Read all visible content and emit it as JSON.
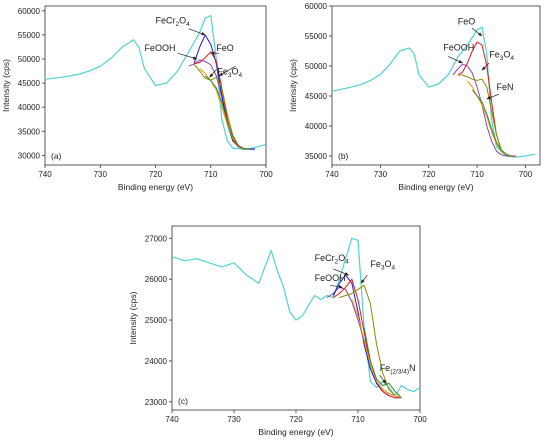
{
  "chart_data": [
    {
      "type": "line",
      "panel_label": "(a)",
      "xlabel": "Binding energy (eV)",
      "ylabel": "Intensity (cps)",
      "xlim": [
        740,
        700
      ],
      "ylim": [
        28000,
        61000
      ],
      "x_ticks": [
        740,
        730,
        720,
        710,
        700
      ],
      "y_ticks": [
        30000,
        35000,
        40000,
        45000,
        50000,
        55000,
        60000
      ],
      "grid": false,
      "series": [
        {
          "color": "#4fd3d3",
          "x": [
            740,
            737,
            734,
            732,
            730,
            728,
            726,
            724,
            723,
            722,
            720,
            718,
            716,
            714,
            712,
            711,
            710,
            709,
            708,
            707,
            706,
            704,
            702,
            700
          ],
          "y": [
            45800,
            46200,
            46800,
            47500,
            48500,
            50200,
            52500,
            54000,
            52500,
            48000,
            44500,
            45000,
            47500,
            51500,
            55500,
            58500,
            59000,
            50000,
            37500,
            33000,
            31500,
            31300,
            31600,
            32300
          ]
        },
        {
          "color": "#8e44ad",
          "x": [
            714,
            713,
            712,
            711,
            710,
            709,
            708,
            707,
            706,
            705,
            704,
            703,
            702
          ],
          "y": [
            48500,
            49000,
            49800,
            49500,
            48800,
            46500,
            42000,
            36500,
            33000,
            31800,
            31400,
            31300,
            31300
          ]
        },
        {
          "color": "#1a1acc",
          "x": [
            713,
            712,
            711,
            710,
            709,
            708,
            707,
            706,
            705,
            704,
            703,
            702
          ],
          "y": [
            49200,
            52500,
            55000,
            53000,
            49000,
            42500,
            36500,
            33000,
            31800,
            31300,
            31300,
            31300
          ]
        },
        {
          "color": "#e8151b",
          "x": [
            713,
            712,
            711,
            710,
            709,
            708,
            707,
            706,
            705,
            704,
            703
          ],
          "y": [
            49000,
            49300,
            50300,
            51500,
            49500,
            44000,
            37500,
            33200,
            31800,
            31300,
            31300
          ]
        },
        {
          "color": "#8b8b00",
          "x": [
            713,
            712,
            711,
            710,
            709,
            708,
            707,
            706,
            705,
            704,
            703
          ],
          "y": [
            48900,
            47500,
            46000,
            45600,
            46200,
            44000,
            38500,
            34200,
            32000,
            31300,
            31300
          ]
        },
        {
          "color": "#f39c12",
          "x": [
            712,
            711,
            710,
            709,
            708,
            707,
            706,
            705,
            704,
            703
          ],
          "y": [
            48000,
            47000,
            45500,
            43500,
            40000,
            36500,
            33500,
            32000,
            31400,
            31300
          ]
        },
        {
          "color": "#2e8b2e",
          "x": [
            711,
            710,
            709,
            708,
            707,
            706,
            705,
            704,
            703
          ],
          "y": [
            46500,
            45500,
            44000,
            41000,
            37000,
            33800,
            32000,
            31400,
            31300
          ]
        }
      ],
      "annotations": [
        {
          "parts": [
            {
              "t": "FeCr"
            },
            {
              "t": "2",
              "sub": true
            },
            {
              "t": "O"
            },
            {
              "t": "4",
              "sub": true
            }
          ],
          "text_xy": [
            720,
            57400
          ],
          "arrow_from": [
            714,
            56300
          ],
          "arrow_to": [
            711,
            55000
          ]
        },
        {
          "parts": [
            {
              "t": "FeOOH"
            }
          ],
          "text_xy": [
            722,
            51700
          ],
          "arrow_from": [
            716,
            51200
          ],
          "arrow_to": [
            712.5,
            50000
          ]
        },
        {
          "parts": [
            {
              "t": "FeO"
            }
          ],
          "text_xy": [
            709,
            51700
          ],
          "arrow_from": [
            708.5,
            51200
          ],
          "arrow_to": [
            710,
            51200
          ]
        },
        {
          "parts": [
            {
              "t": "Fe"
            },
            {
              "t": "3",
              "sub": true
            },
            {
              "t": "O"
            },
            {
              "t": "4",
              "sub": true
            }
          ],
          "text_xy": [
            708.8,
            46800
          ],
          "arrow_from": [
            709,
            47800
          ],
          "arrow_to": [
            710.2,
            46200
          ]
        },
        {
          "parts": [],
          "text_xy": [
            706,
            48000
          ],
          "arrow_from": [
            705.5,
            48500
          ],
          "arrow_to": [
            708.5,
            46500
          ]
        }
      ]
    },
    {
      "type": "line",
      "panel_label": "(b)",
      "xlabel": "Binding energy (eV)",
      "ylabel": "Intensity (cps)",
      "xlim": [
        740,
        697
      ],
      "ylim": [
        33500,
        60000
      ],
      "x_ticks": [
        740,
        730,
        720,
        710,
        700
      ],
      "y_ticks": [
        35000,
        40000,
        45000,
        50000,
        55000,
        60000
      ],
      "grid": false,
      "series": [
        {
          "color": "#4fd3d3",
          "x": [
            740,
            737,
            734,
            732,
            730,
            728,
            726,
            724,
            723,
            722,
            720,
            718,
            716,
            714,
            712,
            710,
            709,
            708,
            707,
            706,
            704,
            702,
            700,
            698
          ],
          "y": [
            45800,
            46300,
            46900,
            47600,
            48600,
            50300,
            52500,
            53000,
            52000,
            48500,
            46500,
            47000,
            48500,
            51500,
            53500,
            56000,
            56500,
            52000,
            41000,
            36500,
            35000,
            34800,
            35000,
            35300
          ]
        },
        {
          "color": "#8e44ad",
          "x": [
            715,
            714,
            713,
            712,
            711,
            710,
            709,
            708,
            707,
            706,
            705,
            704,
            703,
            702
          ],
          "y": [
            48500,
            49500,
            50300,
            50000,
            48800,
            46500,
            43500,
            40000,
            37500,
            35800,
            35200,
            35000,
            35000,
            35000
          ]
        },
        {
          "color": "#e8151b",
          "x": [
            714,
            713,
            712,
            711,
            710,
            709,
            708,
            707,
            706,
            705,
            704,
            703,
            702
          ],
          "y": [
            48500,
            49000,
            50500,
            52500,
            54000,
            53500,
            50000,
            44000,
            38500,
            36000,
            35300,
            35000,
            35000
          ]
        },
        {
          "color": "#8b8b00",
          "x": [
            714,
            713,
            712,
            711,
            710,
            709,
            708,
            707,
            706,
            705,
            704,
            703
          ],
          "y": [
            48500,
            48500,
            48200,
            47800,
            47600,
            47800,
            46500,
            42500,
            38500,
            36000,
            35200,
            35000
          ]
        },
        {
          "color": "#f39c12",
          "x": [
            712,
            711,
            710,
            709,
            708,
            707,
            706,
            705,
            704,
            703
          ],
          "y": [
            47500,
            46500,
            45000,
            43500,
            41500,
            39000,
            37000,
            35800,
            35200,
            35000
          ]
        },
        {
          "color": "#2e8b2e",
          "x": [
            711,
            710,
            709,
            708,
            707,
            706,
            705,
            704,
            703
          ],
          "y": [
            46000,
            45000,
            44000,
            42000,
            39500,
            37300,
            36000,
            35300,
            35000
          ]
        }
      ],
      "annotations": [
        {
          "parts": [
            {
              "t": "FeO"
            }
          ],
          "text_xy": [
            714,
            56900
          ],
          "arrow_from": [
            711,
            56300
          ],
          "arrow_to": [
            709,
            55000
          ]
        },
        {
          "parts": [
            {
              "t": "FeOOH"
            }
          ],
          "text_xy": [
            717,
            52600
          ],
          "arrow_from": [
            716,
            51600
          ],
          "arrow_to": [
            713,
            50500
          ]
        },
        {
          "parts": [
            {
              "t": "Fe"
            },
            {
              "t": "3",
              "sub": true
            },
            {
              "t": "O"
            },
            {
              "t": "4",
              "sub": true
            }
          ],
          "text_xy": [
            707.5,
            51400
          ],
          "arrow_from": [
            707.5,
            50500
          ],
          "arrow_to": [
            709,
            49300
          ]
        },
        {
          "parts": [
            {
              "t": "FeN"
            }
          ],
          "text_xy": [
            706,
            46000
          ],
          "arrow_from": [
            705.5,
            45300
          ],
          "arrow_to": [
            708,
            44500
          ]
        }
      ]
    },
    {
      "type": "line",
      "panel_label": "(c)",
      "xlabel": "Binding energy (eV)",
      "ylabel": "Intensity (cps)",
      "xlim": [
        740,
        700
      ],
      "ylim": [
        22800,
        27300
      ],
      "x_ticks": [
        740,
        730,
        720,
        710,
        700
      ],
      "y_ticks": [
        23000,
        24000,
        25000,
        26000,
        27000
      ],
      "grid": false,
      "series": [
        {
          "color": "#4fd3d3",
          "x": [
            740,
            738,
            736,
            734,
            732,
            730,
            728,
            726,
            724,
            723,
            722,
            721,
            720,
            719,
            718,
            717,
            716,
            715,
            714,
            713,
            712,
            711,
            710,
            709,
            708,
            707,
            706,
            705,
            704,
            703,
            702,
            701,
            700
          ],
          "y": [
            26550,
            26450,
            26500,
            26400,
            26300,
            26400,
            26100,
            25900,
            26700,
            26200,
            25800,
            25200,
            25000,
            25100,
            25350,
            25600,
            25500,
            25600,
            25550,
            26000,
            26500,
            27000,
            26950,
            24800,
            23500,
            23350,
            23500,
            23350,
            23150,
            23400,
            23300,
            23250,
            23350
          ]
        },
        {
          "color": "#8e44ad",
          "x": [
            715,
            714,
            713,
            712,
            711,
            710,
            709,
            708,
            707,
            706,
            705,
            704,
            703
          ],
          "y": [
            25550,
            25650,
            25800,
            25750,
            25450,
            25000,
            24500,
            23900,
            23500,
            23300,
            23200,
            23150,
            23100
          ]
        },
        {
          "color": "#1a1acc",
          "x": [
            714,
            713,
            712,
            711,
            710,
            709,
            708,
            707,
            706,
            705,
            704,
            703
          ],
          "y": [
            25600,
            25900,
            26100,
            25900,
            25200,
            24400,
            23800,
            23450,
            23250,
            23150,
            23100,
            23100
          ]
        },
        {
          "color": "#e8151b",
          "x": [
            714,
            713,
            712,
            711,
            710,
            709,
            708,
            707,
            706,
            705,
            704,
            703
          ],
          "y": [
            25550,
            25650,
            25800,
            26000,
            25500,
            24700,
            23900,
            23500,
            23250,
            23150,
            23100,
            23100
          ]
        },
        {
          "color": "#8b8b00",
          "x": [
            713,
            712,
            711,
            710,
            709,
            708,
            707,
            706,
            705,
            704,
            703
          ],
          "y": [
            25550,
            25600,
            25650,
            25750,
            25850,
            25400,
            24400,
            23700,
            23300,
            23150,
            23100
          ]
        },
        {
          "color": "#f39c12",
          "x": [
            711,
            710,
            709,
            708,
            707,
            706,
            705,
            704,
            703
          ],
          "y": [
            25500,
            25100,
            24500,
            23900,
            23500,
            23300,
            23200,
            23150,
            23100
          ]
        },
        {
          "color": "#2e8b2e",
          "x": [
            709,
            708,
            707,
            706,
            705,
            704,
            703
          ],
          "y": [
            24800,
            24000,
            23550,
            23400,
            23450,
            23250,
            23100
          ]
        }
      ],
      "annotations": [
        {
          "parts": [
            {
              "t": "FeCr"
            },
            {
              "t": "2",
              "sub": true
            },
            {
              "t": "O"
            },
            {
              "t": "4",
              "sub": true
            }
          ],
          "text_xy": [
            717,
            26450
          ],
          "arrow_from": [
            714,
            26250
          ],
          "arrow_to": [
            711.5,
            26100
          ]
        },
        {
          "parts": [
            {
              "t": "FeOOH"
            }
          ],
          "text_xy": [
            717,
            25950
          ],
          "arrow_from": [
            714.5,
            25850
          ],
          "arrow_to": [
            712.5,
            25800
          ]
        },
        {
          "parts": [
            {
              "t": "Fe"
            },
            {
              "t": "3",
              "sub": true
            },
            {
              "t": "O"
            },
            {
              "t": "4",
              "sub": true
            }
          ],
          "text_xy": [
            708,
            26300
          ],
          "arrow_from": [
            708.5,
            26100
          ],
          "arrow_to": [
            709.5,
            25900
          ]
        },
        {
          "parts": [
            {
              "t": "Fe"
            },
            {
              "t": "(2/3/4)",
              "sub": true
            },
            {
              "t": "N"
            }
          ],
          "text_xy": [
            706.5,
            23750
          ],
          "arrow_from": [
            706.5,
            23650
          ],
          "arrow_to": [
            705.5,
            23450
          ]
        }
      ]
    }
  ]
}
